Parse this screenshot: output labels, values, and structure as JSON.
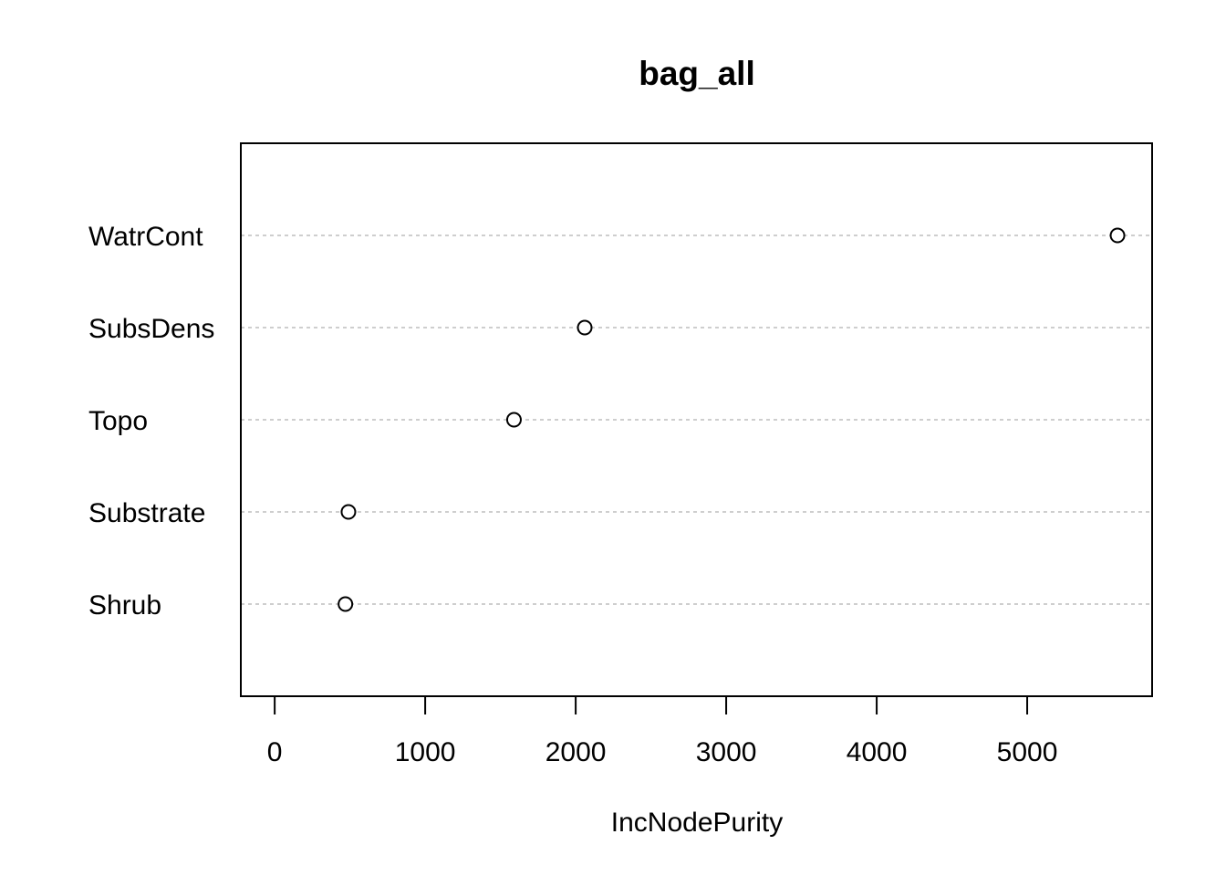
{
  "chart_data": {
    "type": "scatter",
    "title": "bag_all",
    "xlabel": "IncNodePurity",
    "ylabel": "",
    "categories": [
      "WatrCont",
      "SubsDens",
      "Topo",
      "Substrate",
      "Shrub"
    ],
    "values": [
      5600,
      2060,
      1590,
      490,
      470
    ],
    "xlim": [
      -225,
      5830
    ],
    "xticks": [
      0,
      1000,
      2000,
      3000,
      4000,
      5000
    ],
    "xtick_labels": [
      "0",
      "1000",
      "2000",
      "3000",
      "4000",
      "5000"
    ],
    "grid": "dashed horizontal guide line per category",
    "point_style": "open circle",
    "colors": {
      "guide": "#bdbdbd",
      "point_stroke": "#000000",
      "point_fill": "#ffffff"
    }
  }
}
